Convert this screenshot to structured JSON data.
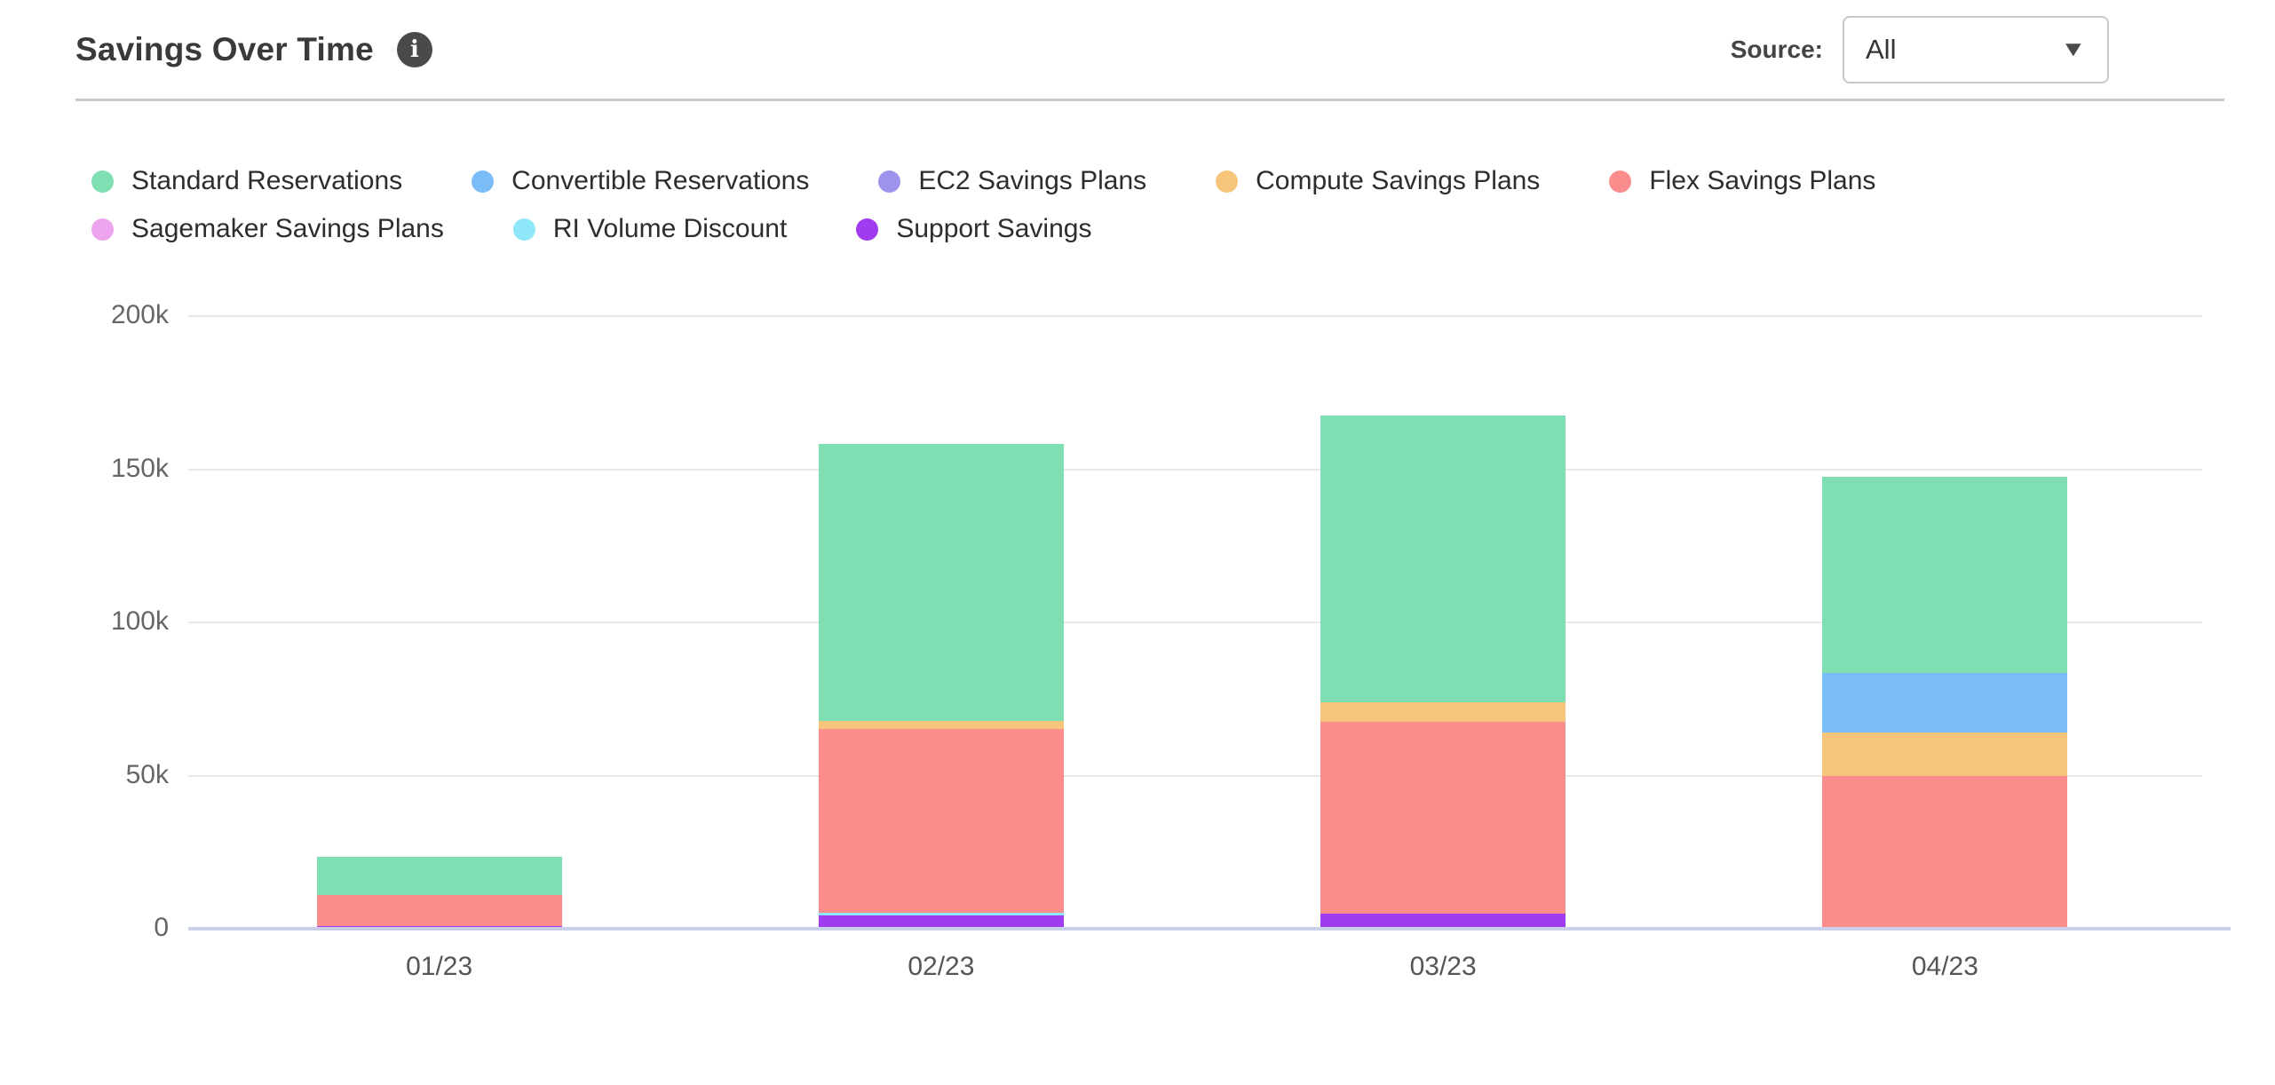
{
  "header": {
    "title": "Savings Over Time",
    "info_icon": "i",
    "source_label": "Source:",
    "source_value": "All"
  },
  "icons": {
    "caret_down": "▼"
  },
  "chart_data": {
    "type": "bar",
    "stacked": true,
    "title": "Savings Over Time",
    "categories": [
      "01/23",
      "02/23",
      "03/23",
      "04/23"
    ],
    "series": [
      {
        "name": "Standard Reservations",
        "color": "#7FDEB2",
        "values": [
          12500,
          90500,
          93500,
          64000
        ]
      },
      {
        "name": "Convertible Reservations",
        "color": "#7ABCF8",
        "values": [
          0,
          0,
          0,
          19500
        ]
      },
      {
        "name": "EC2 Savings Plans",
        "color": "#9D93EC",
        "values": [
          0,
          0,
          0,
          0
        ]
      },
      {
        "name": "Compute Savings Plans",
        "color": "#F7C57A",
        "values": [
          0,
          2500,
          6500,
          14000
        ]
      },
      {
        "name": "Flex Savings Plans",
        "color": "#FB8D8D",
        "values": [
          10000,
          60000,
          62500,
          50000
        ]
      },
      {
        "name": "Sagemaker Savings Plans",
        "color": "#EEA3EF",
        "values": [
          0,
          0,
          0,
          0
        ]
      },
      {
        "name": "RI Volume Discount",
        "color": "#8EE8F9",
        "values": [
          0,
          1000,
          0,
          0
        ]
      },
      {
        "name": "Support Savings",
        "color": "#A13BEF",
        "values": [
          1000,
          4300,
          5000,
          0
        ]
      }
    ],
    "stack_order_bottom_to_top": [
      "Support Savings",
      "RI Volume Discount",
      "Sagemaker Savings Plans",
      "Flex Savings Plans",
      "Compute Savings Plans",
      "EC2 Savings Plans",
      "Convertible Reservations",
      "Standard Reservations"
    ],
    "y_ticks": [
      {
        "value": 0,
        "label": "0"
      },
      {
        "value": 50000,
        "label": "50k"
      },
      {
        "value": 100000,
        "label": "100k"
      },
      {
        "value": 150000,
        "label": "150k"
      },
      {
        "value": 200000,
        "label": "200k"
      }
    ],
    "ylim": [
      0,
      200000
    ],
    "grid": true,
    "legend_position": "top"
  }
}
